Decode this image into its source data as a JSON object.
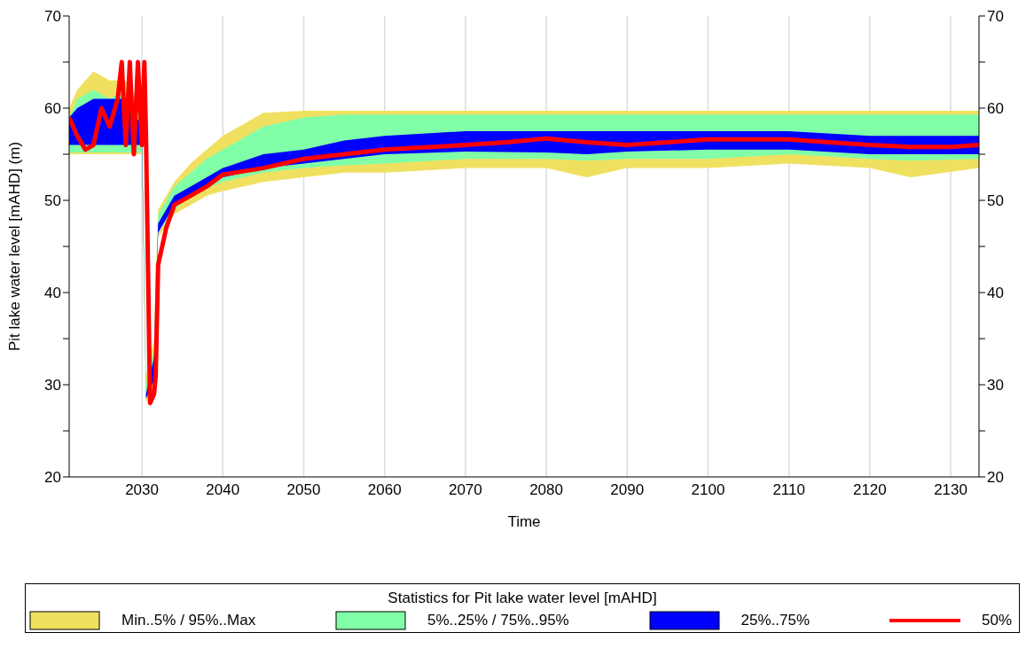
{
  "chart_data": {
    "type": "area",
    "xlabel": "Time",
    "ylabel": "Pit lake water level [mAHD] (m)",
    "legend_title": "Statistics for Pit lake water level [mAHD]",
    "xlim": [
      2021,
      2133.5
    ],
    "xticks": [
      2030,
      2040,
      2050,
      2060,
      2070,
      2080,
      2090,
      2100,
      2110,
      2120,
      2130
    ],
    "ylim": [
      20,
      70
    ],
    "yticks": [
      20,
      {
        "value": 25,
        "label": null
      },
      30,
      {
        "value": 35,
        "label": null
      },
      40,
      {
        "value": 45,
        "label": null
      },
      50,
      {
        "value": 55,
        "label": null
      },
      60,
      {
        "value": 65,
        "label": null
      },
      70
    ],
    "y2lim": [
      20,
      70
    ],
    "y2ticks": [
      20,
      {
        "value": 25,
        "label": null
      },
      30,
      {
        "value": 35,
        "label": null
      },
      40,
      {
        "value": 45,
        "label": null
      },
      50,
      {
        "value": 55,
        "label": null
      },
      60,
      {
        "value": 65,
        "label": null
      },
      70
    ],
    "grid": true,
    "legend": "bottom",
    "marker": "none",
    "line_style": "solid",
    "series": [
      {
        "name": "Min..5% / 95%..Max",
        "color": "#f0e060",
        "x": [
          2021,
          2022,
          2024,
          2026,
          2028,
          2030,
          2030.5,
          2031.5,
          2032,
          2034,
          2036,
          2038,
          2040,
          2045,
          2050,
          2055,
          2060,
          2070,
          2080,
          2085,
          2090,
          2100,
          2110,
          2120,
          2125,
          2133.5
        ],
        "values": [
          null,
          null,
          null,
          null,
          null,
          null,
          null,
          null,
          null,
          null,
          null,
          null,
          null,
          null,
          null,
          null,
          null,
          null,
          null,
          null,
          null,
          null,
          null,
          null,
          null,
          null
        ],
        "lower": [
          55,
          55,
          55,
          55,
          55,
          55,
          28,
          30,
          46,
          48.5,
          49.5,
          50.5,
          51,
          52,
          52.5,
          53,
          53,
          53.5,
          53.5,
          52.5,
          53.5,
          53.5,
          54,
          53.5,
          52.5,
          53.5
        ],
        "upper": [
          60,
          62,
          64,
          63,
          63,
          60,
          31,
          35,
          49,
          52,
          54,
          55.5,
          57,
          59.5,
          59.7,
          59.7,
          59.7,
          59.7,
          59.7,
          59.7,
          59.7,
          59.7,
          59.7,
          59.7,
          59.7,
          59.7
        ]
      },
      {
        "name": "5%..25% / 75%..95%",
        "color": "#80ffa8",
        "x": [
          2021,
          2022,
          2024,
          2026,
          2028,
          2030,
          2030.5,
          2031.5,
          2032,
          2034,
          2036,
          2038,
          2040,
          2045,
          2050,
          2055,
          2060,
          2070,
          2080,
          2085,
          2090,
          2100,
          2110,
          2120,
          2125,
          2133.5
        ],
        "values": [
          null,
          null,
          null,
          null,
          null,
          null,
          null,
          null,
          null,
          null,
          null,
          null,
          null,
          null,
          null,
          null,
          null,
          null,
          null,
          null,
          null,
          null,
          null,
          null,
          null,
          null
        ],
        "lower": [
          55.2,
          55.2,
          55.2,
          55.2,
          55.2,
          55.2,
          28.5,
          30.5,
          46.5,
          49,
          50.5,
          51.3,
          52,
          53,
          53.5,
          53.8,
          54,
          54.5,
          54.5,
          54.3,
          54.5,
          54.5,
          55,
          54.5,
          54.3,
          54.5
        ],
        "upper": [
          59,
          61,
          62,
          61,
          62,
          59,
          30,
          34,
          48.5,
          51.5,
          53,
          54.5,
          55.5,
          58,
          59,
          59.3,
          59.3,
          59.3,
          59.3,
          59.3,
          59.3,
          59.3,
          59.3,
          59.3,
          59.3,
          59.3
        ]
      },
      {
        "name": "25%..75%",
        "color": "#0000ff",
        "x": [
          2021,
          2022,
          2024,
          2026,
          2028,
          2030,
          2030.5,
          2031.5,
          2032,
          2034,
          2036,
          2038,
          2040,
          2045,
          2050,
          2055,
          2060,
          2070,
          2080,
          2085,
          2090,
          2100,
          2110,
          2120,
          2125,
          2133.5
        ],
        "values": [
          null,
          null,
          null,
          null,
          null,
          null,
          null,
          null,
          null,
          null,
          null,
          null,
          null,
          null,
          null,
          null,
          null,
          null,
          null,
          null,
          null,
          null,
          null,
          null,
          null,
          null
        ],
        "lower": [
          56,
          56,
          56,
          56,
          56,
          56,
          28.5,
          30.5,
          46.5,
          49.5,
          50.5,
          51.5,
          52.5,
          53.5,
          54,
          54.5,
          55,
          55.3,
          55.2,
          55,
          55.3,
          55.5,
          55.5,
          55,
          55,
          55
        ],
        "upper": [
          59,
          60,
          61,
          61,
          61,
          58,
          29,
          33,
          47.5,
          50.5,
          51.5,
          52.5,
          53.5,
          55,
          55.5,
          56.5,
          57,
          57.5,
          57.5,
          57.5,
          57.5,
          57.5,
          57.5,
          57,
          57,
          57
        ]
      },
      {
        "type": "line",
        "name": "50%",
        "color": "#ff0000",
        "x": [
          2021,
          2022,
          2023,
          2024,
          2025,
          2026,
          2027,
          2027.5,
          2028,
          2028.5,
          2029,
          2029.5,
          2030,
          2030.3,
          2030.5,
          2031,
          2031.5,
          2031.7,
          2032,
          2033,
          2034,
          2036,
          2038,
          2040,
          2045,
          2050,
          2055,
          2060,
          2070,
          2075,
          2080,
          2085,
          2090,
          2095,
          2100,
          2105,
          2110,
          2115,
          2120,
          2125,
          2130,
          2133.5
        ],
        "values": [
          59,
          57,
          55.5,
          56,
          60,
          58,
          61,
          65,
          56,
          65,
          55,
          65,
          56,
          65,
          57,
          28,
          29,
          31,
          43,
          47,
          49.5,
          50.5,
          51.5,
          52.8,
          53.5,
          54.5,
          55,
          55.5,
          56,
          56.3,
          56.7,
          56.3,
          56,
          56.3,
          56.6,
          56.6,
          56.6,
          56.3,
          56,
          55.8,
          55.8,
          56
        ]
      }
    ]
  }
}
